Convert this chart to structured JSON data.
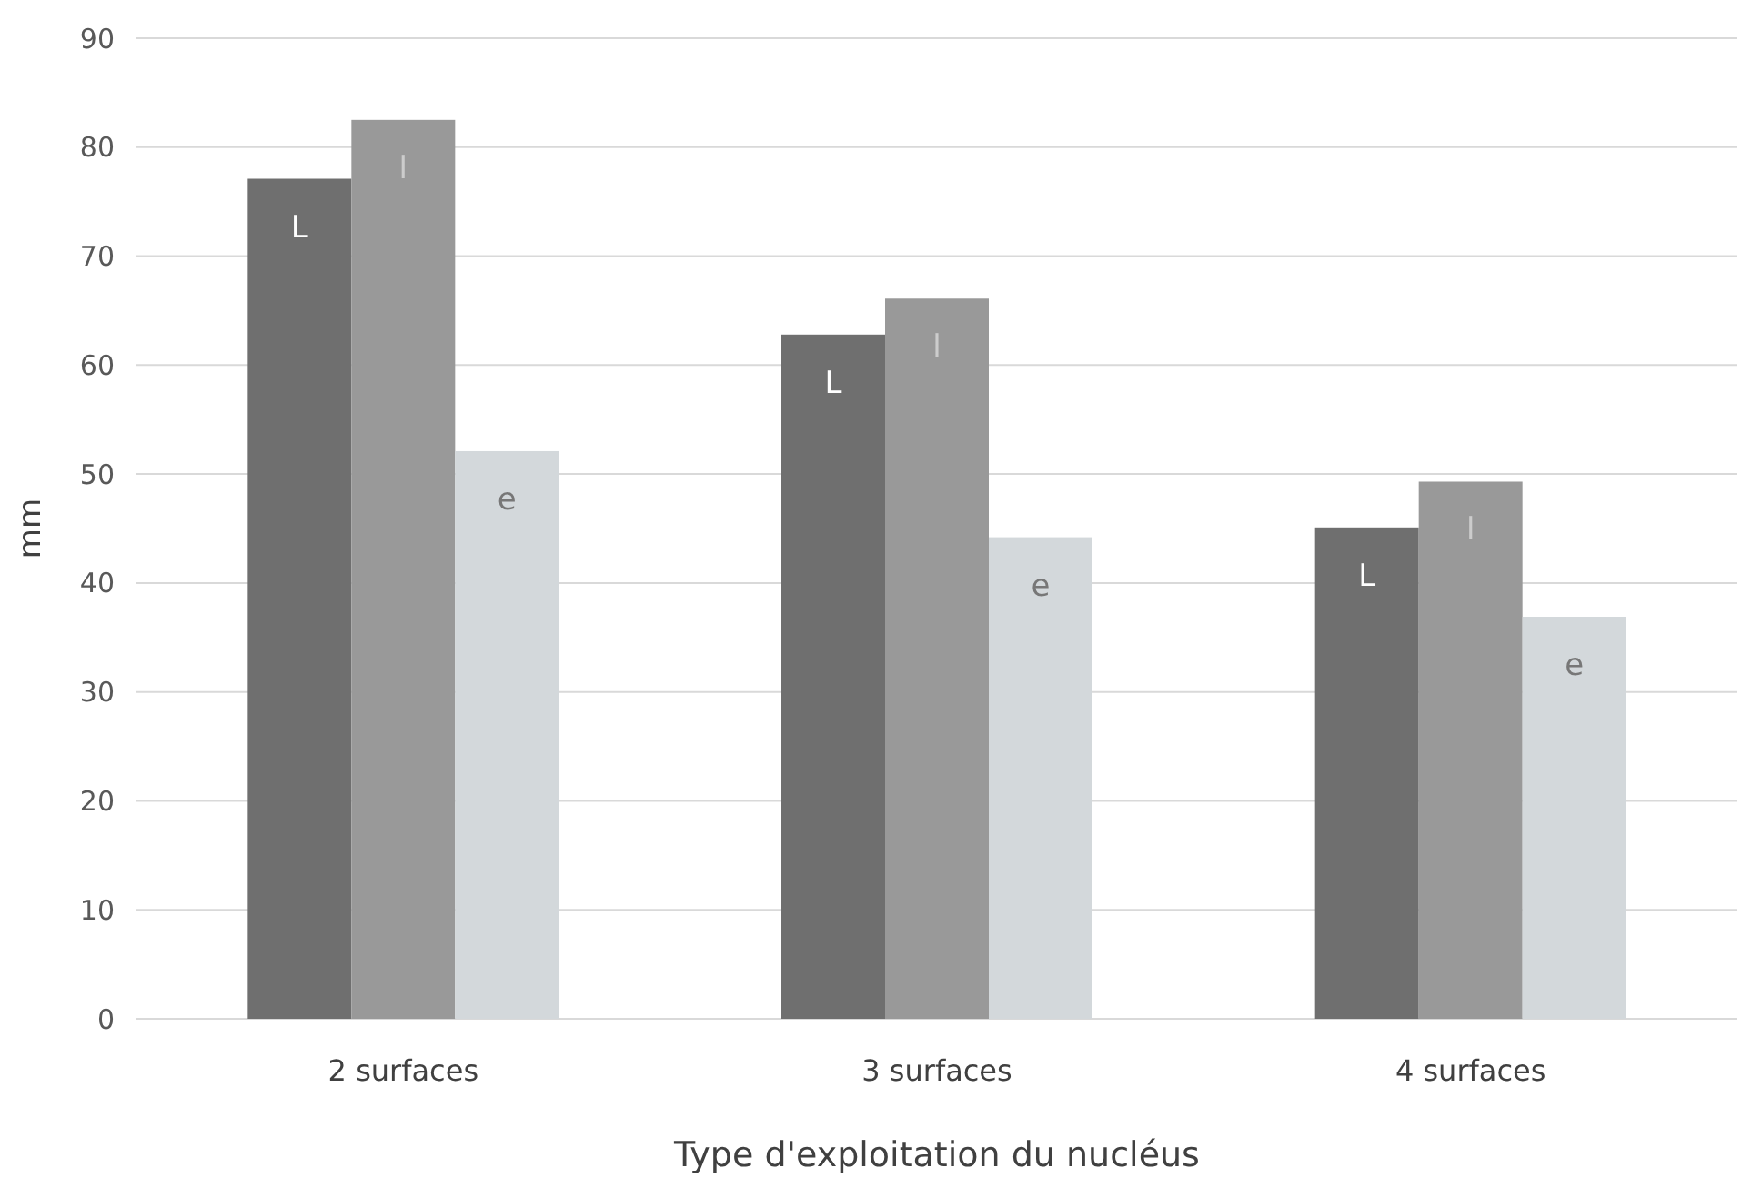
{
  "chart_data": {
    "type": "bar",
    "xlabel": "Type d'exploitation du nucléus",
    "ylabel": "mm",
    "categories": [
      "2 surfaces",
      "3 surfaces",
      "4 surfaces"
    ],
    "series": [
      {
        "name": "L",
        "color": "#6f6f6f",
        "values": [
          77.1,
          62.8,
          45.1
        ]
      },
      {
        "name": "l",
        "color": "#999999",
        "values": [
          82.5,
          66.1,
          49.3
        ]
      },
      {
        "name": "e",
        "color": "#d3d8db",
        "values": [
          52.1,
          44.2,
          36.9
        ]
      }
    ],
    "ylim": [
      0,
      90
    ],
    "yticks": [
      0,
      10,
      20,
      30,
      40,
      50,
      60,
      70,
      80,
      90
    ],
    "grid": "y"
  }
}
